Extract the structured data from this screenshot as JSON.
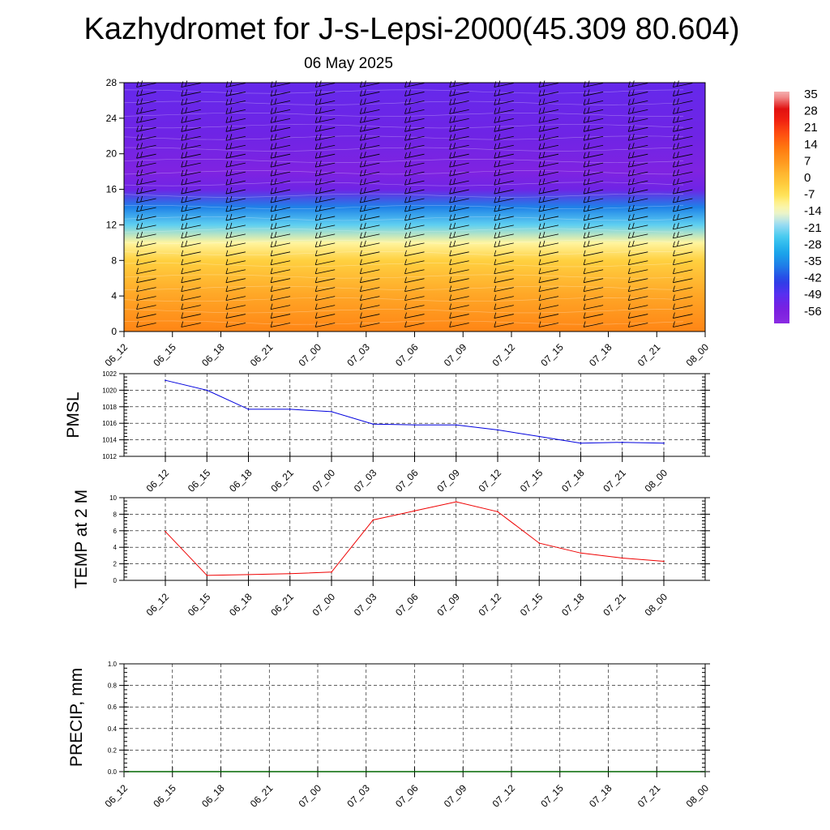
{
  "header": {
    "title": "Kazhydromet for J-s-Lepsi-2000(45.309 80.604)",
    "subtitle": "06 May 2025"
  },
  "colors": {
    "pmsl_line": "#0000dd",
    "temp_line": "#ee0000",
    "precip_line": "#006600"
  },
  "chart_data": [
    {
      "type": "heatmap",
      "name": "wind-temperature-cross-section",
      "x_tick_labels": [
        "06_12",
        "06_15",
        "06_18",
        "06_21",
        "07_00",
        "07_03",
        "07_06",
        "07_09",
        "07_12",
        "07_15",
        "07_18",
        "07_21",
        "08_00"
      ],
      "y_tick_labels": [
        "0",
        "4",
        "8",
        "12",
        "16",
        "20",
        "24",
        "28"
      ],
      "ylim": [
        0,
        28
      ],
      "colorbar": {
        "labels": [
          "35",
          "28",
          "21",
          "14",
          "7",
          "0",
          "-7",
          "-14",
          "-21",
          "-28",
          "-35",
          "-42",
          "-49",
          "-56"
        ],
        "range": [
          -60,
          38
        ]
      },
      "temperature_by_level": [
        {
          "level": 0,
          "value": 12
        },
        {
          "level": 4,
          "value": 6
        },
        {
          "level": 8,
          "value": -2
        },
        {
          "level": 10,
          "value": -10
        },
        {
          "level": 12,
          "value": -22
        },
        {
          "level": 14,
          "value": -35
        },
        {
          "level": 16,
          "value": -52
        },
        {
          "level": 18,
          "value": -56
        },
        {
          "level": 22,
          "value": -52
        },
        {
          "level": 28,
          "value": -50
        }
      ],
      "wind_barbs": true
    },
    {
      "type": "line",
      "name": "pmsl",
      "ylabel": "PMSL",
      "x_tick_labels": [
        "06_12",
        "06_15",
        "06_18",
        "06_21",
        "07_00",
        "07_03",
        "07_06",
        "07_09",
        "07_12",
        "07_15",
        "07_18",
        "07_21",
        "08_00"
      ],
      "y_tick_labels": [
        "1022",
        "1020",
        "1018",
        "1016",
        "1014",
        "1012"
      ],
      "ylim": [
        1012,
        1022
      ],
      "values": [
        1021.2,
        1020.0,
        1017.7,
        1017.7,
        1017.4,
        1015.9,
        1015.8,
        1015.8,
        1015.2,
        1014.4,
        1013.6,
        1013.7,
        1013.6
      ]
    },
    {
      "type": "line",
      "name": "temp-2m",
      "ylabel": "TEMP at 2 M",
      "x_tick_labels": [
        "06_12",
        "06_15",
        "06_18",
        "06_21",
        "07_00",
        "07_03",
        "07_06",
        "07_09",
        "07_12",
        "07_15",
        "07_18",
        "07_21",
        "08_00"
      ],
      "y_tick_labels": [
        "10",
        "8",
        "6",
        "4",
        "2",
        "0"
      ],
      "ylim": [
        0,
        10
      ],
      "values": [
        5.9,
        0.6,
        0.7,
        0.8,
        1.0,
        7.3,
        8.4,
        9.5,
        8.3,
        4.5,
        3.3,
        2.7,
        2.3
      ]
    },
    {
      "type": "line",
      "name": "precip",
      "ylabel": "PRECIP, mm",
      "x_tick_labels": [
        "06_12",
        "06_15",
        "06_18",
        "06_21",
        "07_00",
        "07_03",
        "07_06",
        "07_09",
        "07_12",
        "07_15",
        "07_18",
        "07_21",
        "08_00"
      ],
      "y_tick_labels": [
        "1.0",
        "0.8",
        "0.6",
        "0.4",
        "0.2",
        "0.0"
      ],
      "ylim": [
        0,
        1
      ],
      "values": [
        0,
        0,
        0,
        0,
        0,
        0,
        0,
        0,
        0,
        0,
        0,
        0,
        0
      ]
    }
  ]
}
